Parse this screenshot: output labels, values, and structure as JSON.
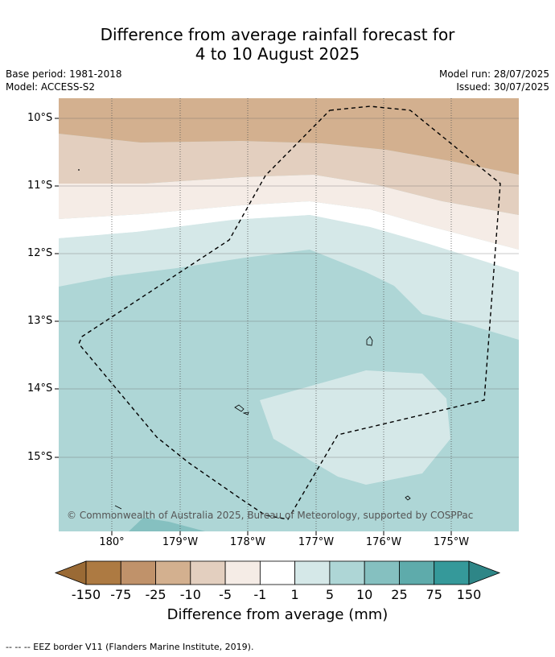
{
  "title_line1": "Difference from average rainfall forecast for",
  "title_line2": "4 to 10 August 2025",
  "base_period": "Base period: 1981-2018",
  "model": "Model: ACCESS-S2",
  "model_run": "Model run: 28/07/2025",
  "issued": "Issued: 30/07/2025",
  "lat_labels": [
    "10°S",
    "11°S",
    "12°S",
    "13°S",
    "14°S",
    "15°S"
  ],
  "lon_labels": [
    "180°",
    "179°W",
    "178°W",
    "177°W",
    "176°W",
    "175°W"
  ],
  "copyright": "© Commonwealth of Australia 2025, Bureau of Meteorology, supported by COSPPac",
  "colorbar": {
    "title": "Difference from average (mm)",
    "ticks": [
      "-150",
      "-75",
      "-25",
      "-10",
      "-5",
      "-1",
      "1",
      "5",
      "10",
      "25",
      "75",
      "150"
    ],
    "colors": [
      "#ad7a42",
      "#c0926a",
      "#d3b08f",
      "#e3cfbf",
      "#f5ece6",
      "#ffffff",
      "#d5e8e8",
      "#aed6d6",
      "#85c0c0",
      "#5eabab",
      "#35999a"
    ],
    "low_extend_color": "#9a6a35",
    "high_extend_color": "#2e8687"
  },
  "footnote": "--  --  -- EEZ border V11 (Flanders Marine Institute, 2019)."
}
